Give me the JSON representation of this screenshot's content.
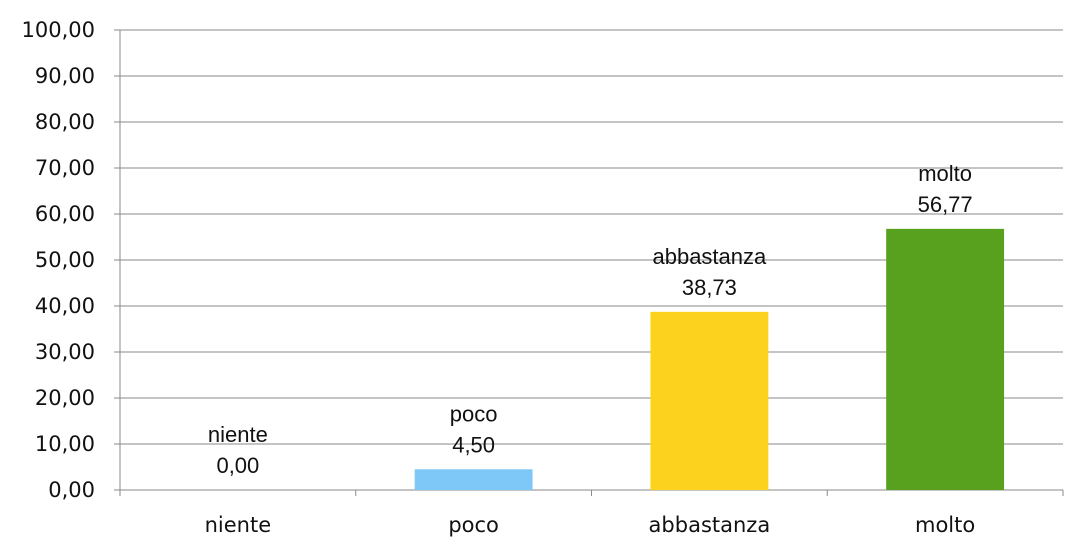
{
  "chart_data": {
    "type": "bar",
    "categories": [
      "niente",
      "poco",
      "abbastanza",
      "molto"
    ],
    "values": [
      0.0,
      4.5,
      38.73,
      56.77
    ],
    "value_labels": [
      "0,00",
      "4,50",
      "38,73",
      "56,77"
    ],
    "colors": [
      "#7EC8F8",
      "#7EC8F8",
      "#FCD21E",
      "#57A11E"
    ],
    "ylim": [
      0,
      100
    ],
    "y_tick_values": [
      0,
      10,
      20,
      30,
      40,
      50,
      60,
      70,
      80,
      90,
      100
    ],
    "y_tick_labels": [
      "0,00",
      "10,00",
      "20,00",
      "30,00",
      "40,00",
      "50,00",
      "60,00",
      "70,00",
      "80,00",
      "90,00",
      "100,00"
    ],
    "grid": true,
    "legend": false,
    "title": "",
    "xlabel": "",
    "ylabel": ""
  }
}
